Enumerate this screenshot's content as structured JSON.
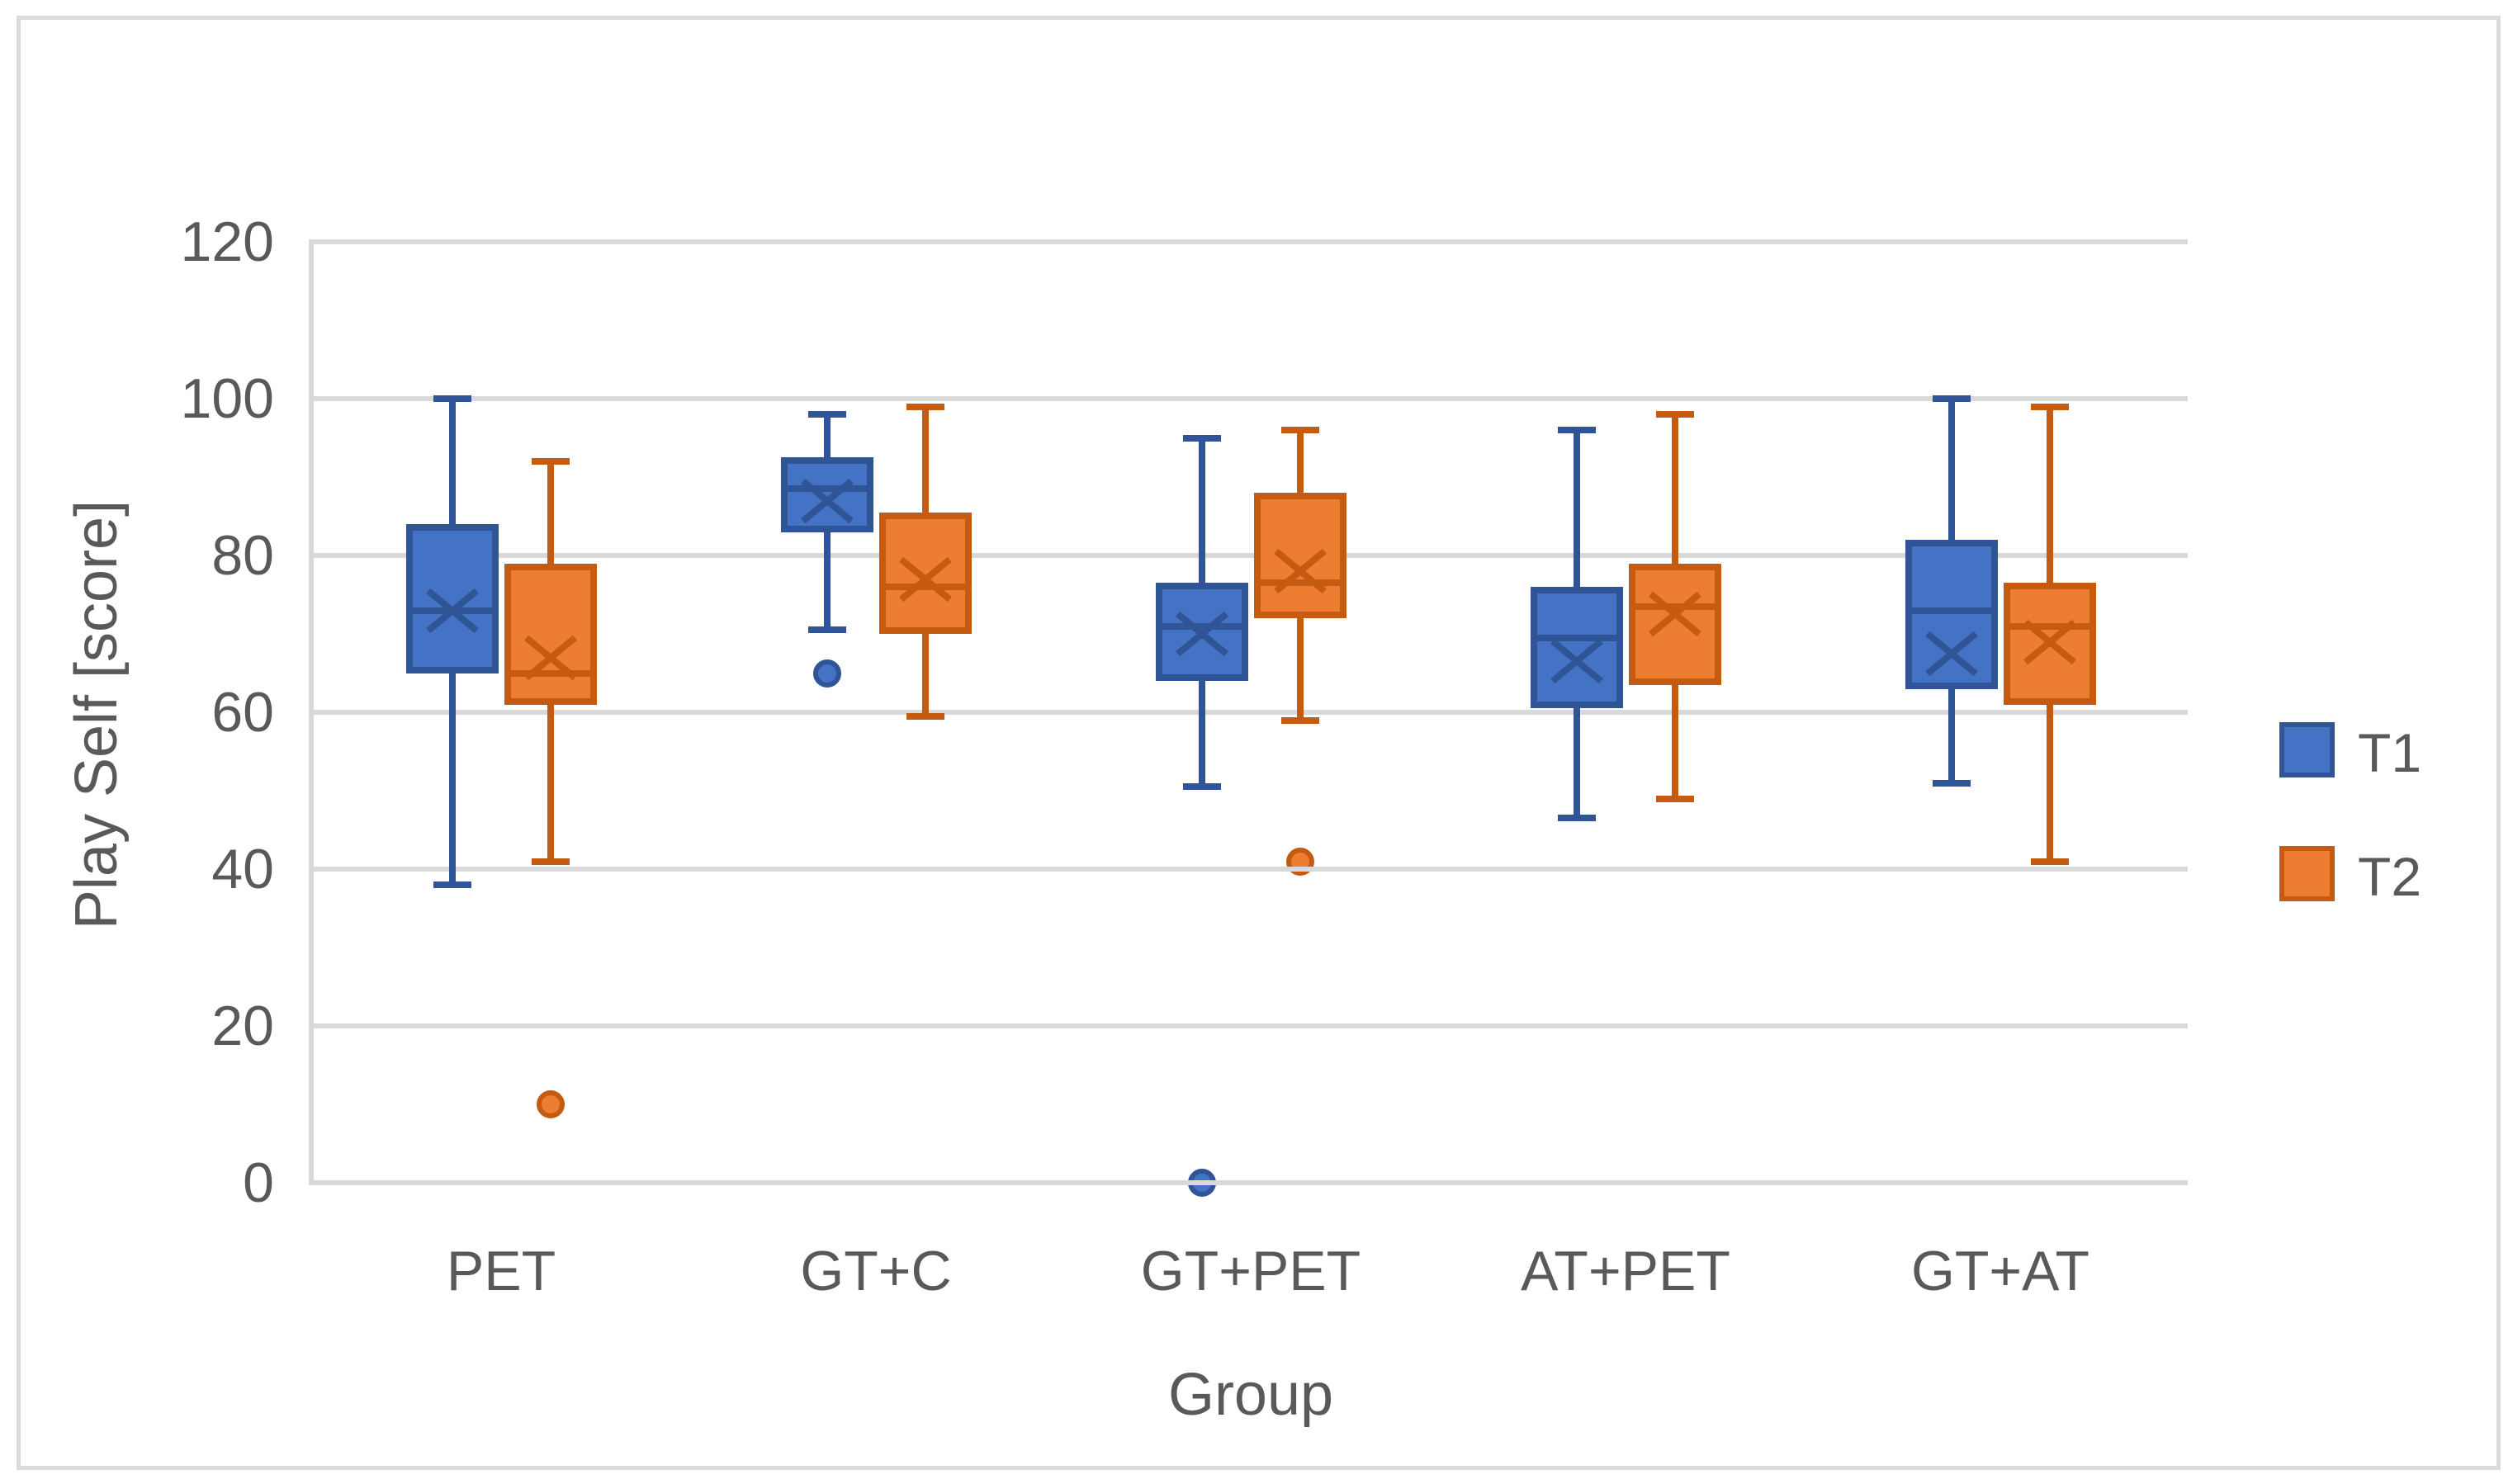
{
  "chart_data": {
    "type": "boxplot",
    "title": "",
    "xlabel": "Group",
    "ylabel": "Play Self [score]",
    "categories": [
      "PET",
      "GT+C",
      "GT+PET",
      "AT+PET",
      "GT+AT"
    ],
    "y_axis": {
      "min": 0,
      "max": 120,
      "step": 20,
      "tick_labels": [
        "0",
        "20",
        "40",
        "60",
        "80",
        "100",
        "120"
      ]
    },
    "grid": true,
    "legend": {
      "position": "right",
      "entries": [
        {
          "label": "T1",
          "fill": "#4472C4",
          "border": "#2F5597"
        },
        {
          "label": "T2",
          "fill": "#ED7D31",
          "border": "#C55A11"
        }
      ]
    },
    "series": [
      {
        "name": "T1",
        "fill": "#4472C4",
        "stroke": "#2F5597",
        "boxes": [
          {
            "category": "PET",
            "min": 38,
            "q1": 65,
            "median": 73,
            "q3": 84,
            "max": 100,
            "mean": 73,
            "outliers": []
          },
          {
            "category": "GT+C",
            "min": 70.5,
            "q1": 83,
            "median": 88.5,
            "q3": 92.5,
            "max": 98,
            "mean": 87,
            "outliers": [
              65
            ]
          },
          {
            "category": "GT+PET",
            "min": 50.5,
            "q1": 64,
            "median": 71,
            "q3": 76.5,
            "max": 95,
            "mean": 70,
            "outliers": [
              0
            ]
          },
          {
            "category": "AT+PET",
            "min": 46.5,
            "q1": 60.5,
            "median": 69.5,
            "q3": 76,
            "max": 96,
            "mean": 66.5,
            "outliers": []
          },
          {
            "category": "GT+AT",
            "min": 51,
            "q1": 63,
            "median": 73,
            "q3": 82,
            "max": 100,
            "mean": 67.5,
            "outliers": []
          }
        ]
      },
      {
        "name": "T2",
        "fill": "#ED7D31",
        "stroke": "#C55A11",
        "boxes": [
          {
            "category": "PET",
            "min": 41,
            "q1": 61,
            "median": 65,
            "q3": 79,
            "max": 92,
            "mean": 67,
            "outliers": [
              10
            ]
          },
          {
            "category": "GT+C",
            "min": 59.5,
            "q1": 70,
            "median": 76,
            "q3": 85.5,
            "max": 99,
            "mean": 77,
            "outliers": []
          },
          {
            "category": "GT+PET",
            "min": 59,
            "q1": 72,
            "median": 76.5,
            "q3": 88,
            "max": 96,
            "mean": 78,
            "outliers": [
              41
            ]
          },
          {
            "category": "AT+PET",
            "min": 49,
            "q1": 63.5,
            "median": 73.5,
            "q3": 79,
            "max": 98,
            "mean": 72.5,
            "outliers": []
          },
          {
            "category": "GT+AT",
            "min": 41,
            "q1": 61,
            "median": 71,
            "q3": 76.5,
            "max": 99,
            "mean": 69,
            "outliers": []
          }
        ]
      }
    ]
  },
  "colors": {
    "gridline": "#D9D9D9",
    "axis_text": "#595959",
    "chart_border": "#DBDBDB",
    "background": "#FFFFFF"
  }
}
